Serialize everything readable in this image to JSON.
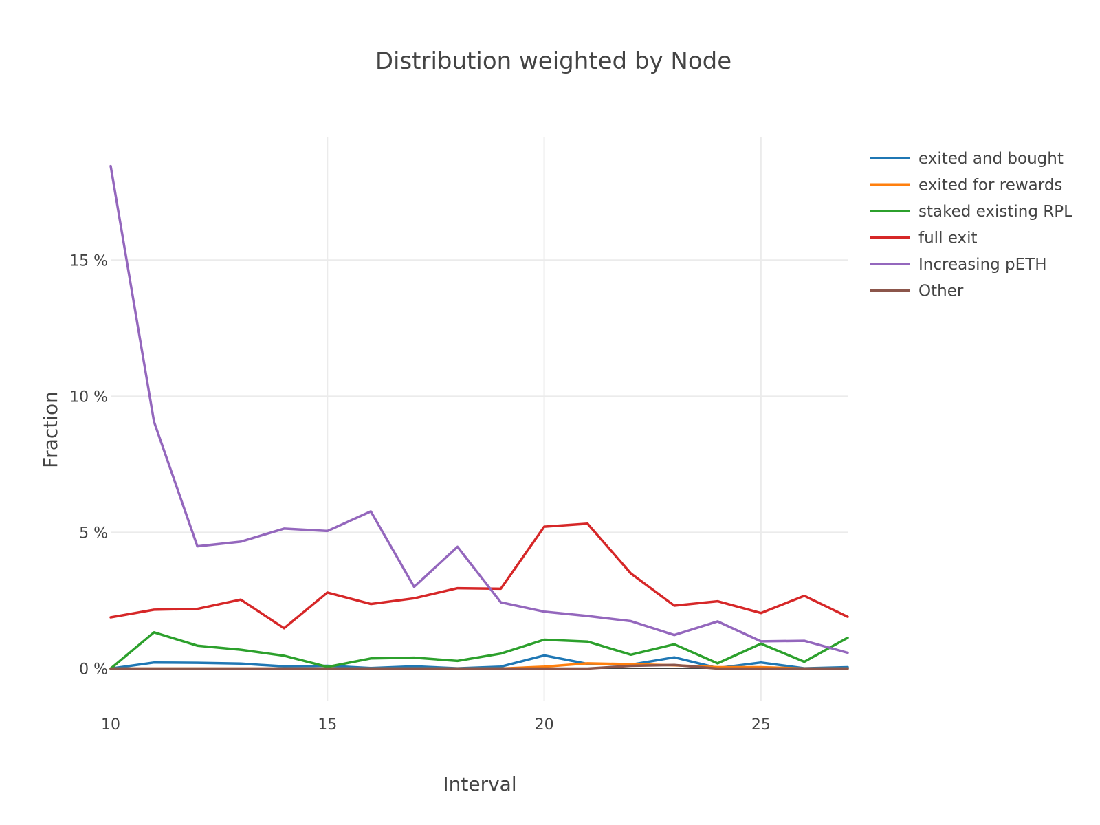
{
  "chart_data": {
    "type": "line",
    "title": "Distribution weighted by Node",
    "xlabel": "Interval",
    "ylabel": "Fraction",
    "x": [
      10,
      11,
      12,
      13,
      14,
      15,
      16,
      17,
      18,
      19,
      20,
      21,
      22,
      23,
      24,
      25,
      26,
      27
    ],
    "xlim": [
      10,
      27
    ],
    "ylim": [
      -1.2,
      19.5
    ],
    "x_ticks": [
      10,
      15,
      20,
      25
    ],
    "x_tick_labels": [
      "10",
      "15",
      "20",
      "25"
    ],
    "y_ticks": [
      0,
      5,
      10,
      15
    ],
    "y_tick_labels": [
      "0 %",
      "5 %",
      "10 %",
      "15 %"
    ],
    "y_unit": "%",
    "grid": true,
    "legend_position": "top-right",
    "series": [
      {
        "name": "exited and bought",
        "color": "#1f77b4",
        "values": [
          0.0,
          0.22,
          0.21,
          0.18,
          0.08,
          0.1,
          0.02,
          0.08,
          0.01,
          0.07,
          0.48,
          0.17,
          0.14,
          0.41,
          0.02,
          0.22,
          0.01,
          0.05
        ]
      },
      {
        "name": "exited for rewards",
        "color": "#ff7f0e",
        "values": [
          0.0,
          0.0,
          0.0,
          0.0,
          0.0,
          0.0,
          0.0,
          0.0,
          0.0,
          0.0,
          0.07,
          0.19,
          0.16,
          0.12,
          0.05,
          0.05,
          0.0,
          0.0
        ]
      },
      {
        "name": "staked existing RPL",
        "color": "#2ca02c",
        "values": [
          0.0,
          1.33,
          0.84,
          0.69,
          0.47,
          0.06,
          0.37,
          0.4,
          0.28,
          0.55,
          1.06,
          0.99,
          0.51,
          0.89,
          0.19,
          0.91,
          0.25,
          1.13
        ]
      },
      {
        "name": "full exit",
        "color": "#d62728",
        "values": [
          1.88,
          2.16,
          2.19,
          2.53,
          1.48,
          2.79,
          2.37,
          2.58,
          2.95,
          2.93,
          5.21,
          5.32,
          3.49,
          2.31,
          2.47,
          2.04,
          2.67,
          1.9
        ]
      },
      {
        "name": "Increasing pETH",
        "color": "#9467bd",
        "values": [
          18.45,
          9.06,
          4.49,
          4.66,
          5.14,
          5.05,
          5.77,
          3.0,
          4.47,
          2.43,
          2.09,
          1.93,
          1.74,
          1.23,
          1.73,
          1.0,
          1.02,
          0.58
        ]
      },
      {
        "name": "Other",
        "color": "#8c564b",
        "values": [
          0.0,
          0.0,
          0.0,
          0.0,
          0.0,
          0.0,
          0.0,
          0.0,
          0.0,
          0.0,
          0.0,
          0.0,
          0.1,
          0.13,
          0.0,
          0.0,
          0.0,
          0.0
        ]
      }
    ]
  }
}
